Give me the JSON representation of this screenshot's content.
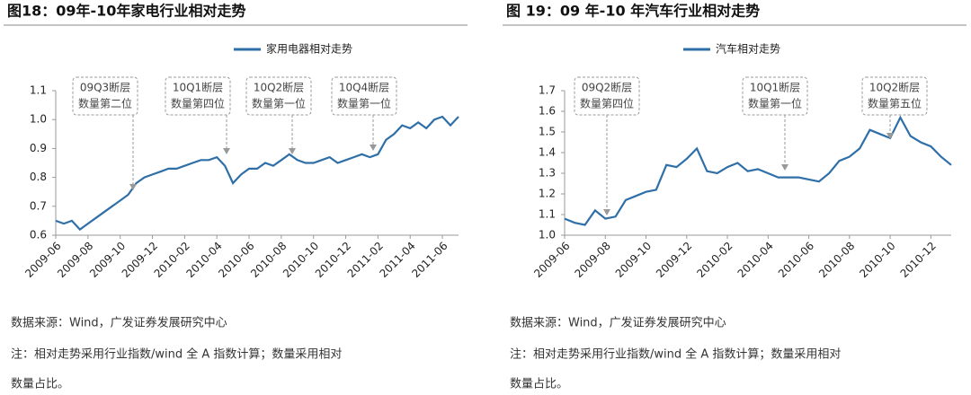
{
  "chart_data": [
    {
      "type": "line",
      "title": "图18：09年-10年家电行业相对走势",
      "categories": [
        "2009-06",
        null,
        null,
        null,
        "2009-08",
        null,
        null,
        null,
        "2009-10",
        null,
        null,
        null,
        "2009-12",
        null,
        null,
        null,
        "2010-02",
        null,
        null,
        null,
        "2010-04",
        null,
        null,
        null,
        "2010-06",
        null,
        null,
        null,
        "2010-08",
        null,
        null,
        null,
        "2010-10",
        null,
        null,
        null,
        "2010-12",
        null,
        null,
        null,
        "2011-02",
        null,
        null,
        null,
        "2011-04",
        null,
        null,
        null,
        "2011-06",
        null,
        null
      ],
      "series": [
        {
          "name": "家用电器相对走势",
          "color": "#2f6fa8",
          "values": [
            0.65,
            0.64,
            0.65,
            0.62,
            0.64,
            0.66,
            0.68,
            0.7,
            0.72,
            0.74,
            0.78,
            0.8,
            0.81,
            0.82,
            0.83,
            0.83,
            0.84,
            0.85,
            0.86,
            0.86,
            0.87,
            0.84,
            0.78,
            0.81,
            0.83,
            0.83,
            0.85,
            0.84,
            0.86,
            0.88,
            0.86,
            0.85,
            0.85,
            0.86,
            0.87,
            0.85,
            0.86,
            0.87,
            0.88,
            0.87,
            0.88,
            0.93,
            0.95,
            0.98,
            0.97,
            0.99,
            0.97,
            1.0,
            1.01,
            0.98,
            1.01
          ]
        }
      ],
      "ylim": [
        0.6,
        1.1
      ],
      "yticks": [
        0.6,
        0.7,
        0.8,
        0.9,
        {
          "value": 1,
          "label": "1.0"
        },
        1.1
      ],
      "annotations": [
        [
          "09Q3断层",
          "数量第二位"
        ],
        [
          "10Q1断层",
          "数量第四位"
        ],
        [
          "10Q2断层",
          "数量第一位"
        ],
        [
          "10Q4断层",
          "数量第一位"
        ]
      ],
      "source": "数据来源：Wind，广发证券发展研究中心",
      "note": [
        "注：相对走势采用行业指数/wind 全 A 指数计算；数量采用相对",
        "数量占比。"
      ]
    },
    {
      "type": "line",
      "title": "图 19：09 年-10 年汽车行业相对走势",
      "categories": [
        "2009-06",
        null,
        null,
        null,
        "2009-08",
        null,
        null,
        null,
        "2009-10",
        null,
        null,
        null,
        "2009-12",
        null,
        null,
        null,
        "2010-02",
        null,
        null,
        null,
        "2010-04",
        null,
        null,
        null,
        "2010-06",
        null,
        null,
        null,
        "2010-08",
        null,
        null,
        null,
        "2010-10",
        null,
        null,
        null,
        "2010-12",
        null,
        null
      ],
      "series": [
        {
          "name": "汽车相对走势",
          "color": "#2f6fa8",
          "values": [
            1.08,
            1.06,
            1.05,
            1.12,
            1.08,
            1.09,
            1.17,
            1.19,
            1.21,
            1.22,
            1.34,
            1.33,
            1.37,
            1.42,
            1.31,
            1.3,
            1.33,
            1.35,
            1.31,
            1.32,
            1.3,
            1.28,
            1.28,
            1.28,
            1.27,
            1.26,
            1.3,
            1.36,
            1.38,
            1.42,
            1.51,
            1.49,
            1.47,
            1.57,
            1.48,
            1.45,
            1.43,
            1.38,
            1.34
          ]
        }
      ],
      "ylim": [
        1.0,
        1.7
      ],
      "yticks": [
        {
          "value": 1,
          "label": "1.0"
        },
        1.1,
        1.2,
        1.3,
        1.4,
        1.5,
        1.6,
        1.7
      ],
      "annotations": [
        [
          "09Q2断层",
          "数量第四位"
        ],
        [
          "10Q1断层",
          "数量第一位"
        ],
        [
          "10Q2断层",
          "数量第五位"
        ]
      ],
      "source": "数据来源：Wind，广发证券发展研究中心",
      "note": [
        "注：相对走势采用行业指数/wind 全 A 指数计算；数量采用相对",
        "数量占比。"
      ]
    }
  ]
}
